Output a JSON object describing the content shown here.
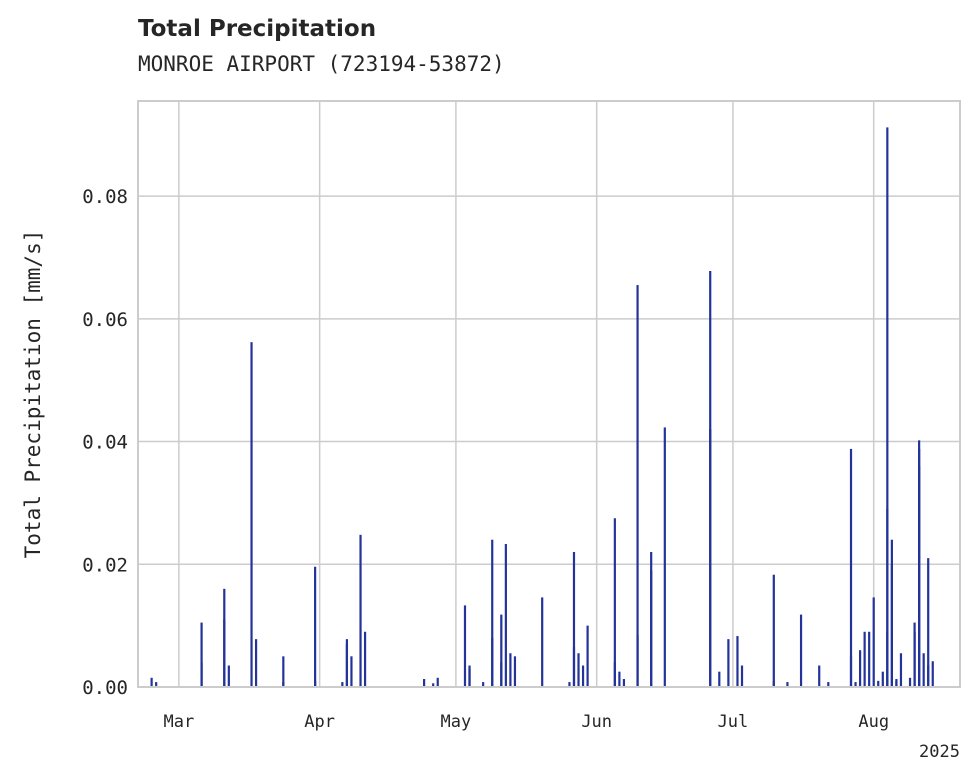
{
  "chart_data": {
    "type": "bar",
    "title": "Total Precipitation",
    "subtitle": "MONROE AIRPORT (723194-53872)",
    "ylabel": "Total Precipitation [mm/s]",
    "xlabel": "",
    "year_label": "2025",
    "x_range": [
      "2025-02-20",
      "2025-08-20"
    ],
    "ylim": [
      0,
      0.0955
    ],
    "yticks": [
      {
        "value": 0.0,
        "label": "0.00"
      },
      {
        "value": 0.02,
        "label": "0.02"
      },
      {
        "value": 0.04,
        "label": "0.04"
      },
      {
        "value": 0.06,
        "label": "0.06"
      },
      {
        "value": 0.08,
        "label": "0.08"
      }
    ],
    "xticks": [
      {
        "date": "2025-03-01",
        "label": "Mar"
      },
      {
        "date": "2025-04-01",
        "label": "Apr"
      },
      {
        "date": "2025-05-01",
        "label": "May"
      },
      {
        "date": "2025-06-01",
        "label": "Jun"
      },
      {
        "date": "2025-07-01",
        "label": "Jul"
      },
      {
        "date": "2025-08-01",
        "label": "Aug"
      }
    ],
    "grid": true,
    "series": [
      {
        "color": "#23339a",
        "points": [
          [
            "2025-02-23",
            0.0015
          ],
          [
            "2025-02-24",
            0.0008
          ],
          [
            "2025-03-06",
            0.0105
          ],
          [
            "2025-03-06",
            0.004
          ],
          [
            "2025-03-11",
            0.016
          ],
          [
            "2025-03-11",
            0.011
          ],
          [
            "2025-03-12",
            0.0035
          ],
          [
            "2025-03-17",
            0.0562
          ],
          [
            "2025-03-18",
            0.0078
          ],
          [
            "2025-03-24",
            0.005
          ],
          [
            "2025-03-24",
            0.0008
          ],
          [
            "2025-03-31",
            0.0196
          ],
          [
            "2025-03-31",
            0.001
          ],
          [
            "2025-04-06",
            0.0008
          ],
          [
            "2025-04-07",
            0.0078
          ],
          [
            "2025-04-07",
            0.007
          ],
          [
            "2025-04-08",
            0.005
          ],
          [
            "2025-04-10",
            0.0248
          ],
          [
            "2025-04-11",
            0.009
          ],
          [
            "2025-04-24",
            0.0013
          ],
          [
            "2025-04-26",
            0.0006
          ],
          [
            "2025-04-27",
            0.0015
          ],
          [
            "2025-05-03",
            0.0133
          ],
          [
            "2025-05-04",
            0.0035
          ],
          [
            "2025-05-04",
            0.003
          ],
          [
            "2025-05-07",
            0.0008
          ],
          [
            "2025-05-09",
            0.024
          ],
          [
            "2025-05-09",
            0.008
          ],
          [
            "2025-05-11",
            0.0118
          ],
          [
            "2025-05-11",
            0.004
          ],
          [
            "2025-05-12",
            0.0233
          ],
          [
            "2025-05-13",
            0.0055
          ],
          [
            "2025-05-14",
            0.005
          ],
          [
            "2025-05-20",
            0.0146
          ],
          [
            "2025-05-26",
            0.0008
          ],
          [
            "2025-05-27",
            0.022
          ],
          [
            "2025-05-27",
            0.0065
          ],
          [
            "2025-05-28",
            0.0055
          ],
          [
            "2025-05-29",
            0.0035
          ],
          [
            "2025-05-30",
            0.01
          ],
          [
            "2025-06-05",
            0.0275
          ],
          [
            "2025-06-05",
            0.004
          ],
          [
            "2025-06-06",
            0.0025
          ],
          [
            "2025-06-07",
            0.0013
          ],
          [
            "2025-06-10",
            0.0655
          ],
          [
            "2025-06-10",
            0.0085
          ],
          [
            "2025-06-13",
            0.022
          ],
          [
            "2025-06-13",
            0.019
          ],
          [
            "2025-06-16",
            0.0423
          ],
          [
            "2025-06-26",
            0.0678
          ],
          [
            "2025-06-26",
            0.042
          ],
          [
            "2025-06-28",
            0.0025
          ],
          [
            "2025-06-30",
            0.0078
          ],
          [
            "2025-07-02",
            0.0083
          ],
          [
            "2025-07-03",
            0.0035
          ],
          [
            "2025-07-10",
            0.0183
          ],
          [
            "2025-07-10",
            0.001
          ],
          [
            "2025-07-13",
            0.0008
          ],
          [
            "2025-07-16",
            0.0118
          ],
          [
            "2025-07-20",
            0.0035
          ],
          [
            "2025-07-22",
            0.0008
          ],
          [
            "2025-07-27",
            0.0388
          ],
          [
            "2025-07-27",
            0.005
          ],
          [
            "2025-07-28",
            0.0008
          ],
          [
            "2025-07-29",
            0.006
          ],
          [
            "2025-07-30",
            0.009
          ],
          [
            "2025-07-31",
            0.009
          ],
          [
            "2025-08-01",
            0.0146
          ],
          [
            "2025-08-02",
            0.001
          ],
          [
            "2025-08-03",
            0.0025
          ],
          [
            "2025-08-04",
            0.0912
          ],
          [
            "2025-08-04",
            0.029
          ],
          [
            "2025-08-04",
            0.009
          ],
          [
            "2025-08-05",
            0.024
          ],
          [
            "2025-08-05",
            0.02
          ],
          [
            "2025-08-06",
            0.001
          ],
          [
            "2025-08-06",
            0.0013
          ],
          [
            "2025-08-07",
            0.0055
          ],
          [
            "2025-08-09",
            0.0015
          ],
          [
            "2025-08-10",
            0.0105
          ],
          [
            "2025-08-10",
            0.009
          ],
          [
            "2025-08-11",
            0.0388
          ],
          [
            "2025-08-11",
            0.0402
          ],
          [
            "2025-08-11",
            0.036
          ],
          [
            "2025-08-12",
            0.0055
          ],
          [
            "2025-08-13",
            0.0035
          ],
          [
            "2025-08-13",
            0.021
          ],
          [
            "2025-08-14",
            0.0042
          ]
        ]
      }
    ]
  }
}
